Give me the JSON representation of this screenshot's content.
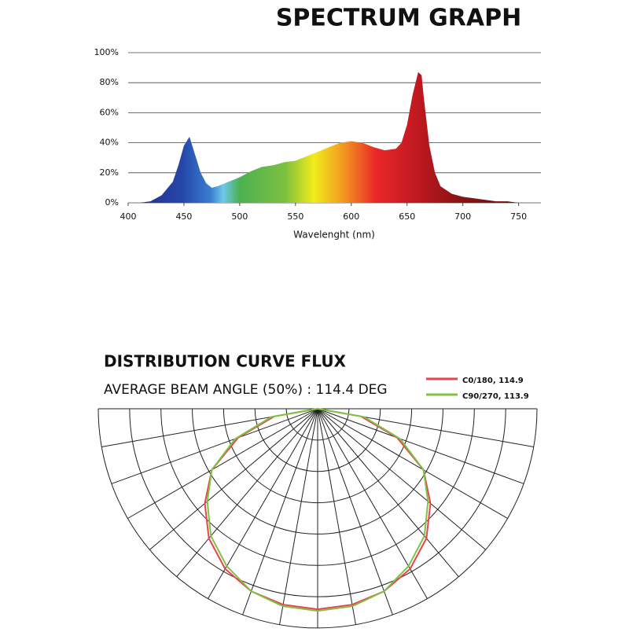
{
  "chart_data": [
    {
      "type": "area",
      "title": "SPECTRUM GRAPH",
      "xlabel": "Wavelenght (nm)",
      "x": [
        400,
        410,
        420,
        430,
        440,
        445,
        450,
        455,
        460,
        465,
        470,
        475,
        480,
        490,
        500,
        510,
        520,
        530,
        540,
        550,
        560,
        570,
        580,
        590,
        600,
        610,
        620,
        630,
        640,
        645,
        650,
        655,
        660,
        663,
        665,
        670,
        675,
        680,
        690,
        700,
        710,
        720,
        730,
        740,
        750,
        770
      ],
      "values": [
        0,
        0,
        1,
        5,
        14,
        25,
        38,
        44,
        32,
        20,
        13,
        10,
        11,
        14,
        17,
        21,
        24,
        25,
        27,
        28,
        31,
        34,
        37,
        40,
        41,
        40,
        37,
        35,
        36,
        40,
        52,
        72,
        87,
        85,
        70,
        38,
        20,
        11,
        6,
        4,
        3,
        2,
        1,
        1,
        0,
        0
      ],
      "xlim": [
        400,
        770
      ],
      "xticks": [
        400,
        450,
        500,
        550,
        600,
        650,
        700,
        750
      ],
      "ylim": [
        0,
        100
      ],
      "yticks": [
        {
          "value": 0,
          "label": "0%"
        },
        {
          "value": 20,
          "label": "20%"
        },
        {
          "value": 40,
          "label": "40%"
        },
        {
          "value": 60,
          "label": "60%"
        },
        {
          "value": 80,
          "label": "80%"
        },
        {
          "value": 100,
          "label": "100%"
        }
      ],
      "grid": true
    },
    {
      "type": "polar",
      "title": "DISTRIBUTION CURVE FLUX",
      "subtitle": "AVERAGE BEAM ANGLE  (50%) : 114.4 DEG",
      "theta": [
        -90,
        -80,
        -70,
        -60,
        -50,
        -40,
        -30,
        -20,
        -10,
        0,
        10,
        20,
        30,
        40,
        50,
        60,
        70,
        80,
        90
      ],
      "series": [
        {
          "name": "C0/180, 114.9",
          "color": "#e8434f",
          "values": [
            0,
            1.4,
            2.7,
            3.9,
            4.7,
            5.4,
            5.9,
            6.2,
            6.35,
            6.4,
            6.35,
            6.2,
            5.9,
            5.4,
            4.7,
            3.9,
            2.7,
            1.4,
            0
          ]
        },
        {
          "name": "C90/270, 113.9",
          "color": "#7cc243",
          "values": [
            0,
            1.5,
            2.8,
            3.9,
            4.6,
            5.3,
            5.8,
            6.2,
            6.4,
            6.45,
            6.4,
            6.2,
            5.8,
            5.3,
            4.6,
            3.9,
            2.8,
            1.5,
            0
          ]
        }
      ],
      "rlim": [
        0,
        7
      ],
      "rticks": [
        1,
        2,
        3,
        4,
        5,
        6,
        7
      ],
      "thetaticks": [
        -90,
        -80,
        -70,
        -60,
        -50,
        -40,
        -30,
        -20,
        -10,
        0,
        10,
        20,
        30,
        40,
        50,
        60,
        70,
        80,
        90
      ],
      "legend": "upper-right"
    }
  ]
}
